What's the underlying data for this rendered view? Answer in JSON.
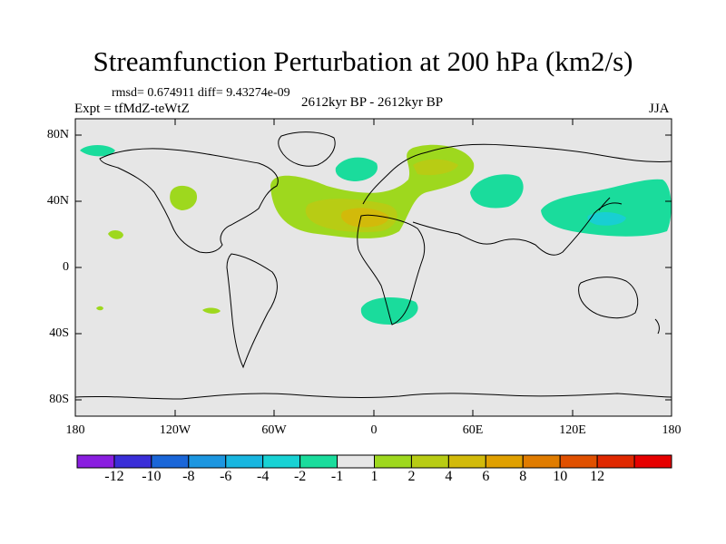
{
  "title": "Streamfunction Perturbation at 200 hPa (km2/s)",
  "stats_line": "rmsd= 0.674911 diff= 9.43274e-09",
  "expt_label": "Expt = tfMdZ-teWtZ",
  "period_label": "2612kyr BP - 2612kyr BP",
  "season_label": "JJA",
  "axes": {
    "y_ticks": [
      "80N",
      "40N",
      "0",
      "40S",
      "80S"
    ],
    "x_ticks": [
      "180",
      "120W",
      "60W",
      "0",
      "60E",
      "120E",
      "180"
    ]
  },
  "colorbar": {
    "colors": [
      "#8a1ee0",
      "#3a2ed8",
      "#1a66d8",
      "#1c96e0",
      "#18b6e0",
      "#18d2d4",
      "#1adc9c",
      "#e6e6e6",
      "#9ed81e",
      "#b8cc14",
      "#d2ba0a",
      "#e0a000",
      "#e07c00",
      "#e05000",
      "#e02800",
      "#e60000"
    ],
    "labels": [
      "-12",
      "-10",
      "-8",
      "-6",
      "-4",
      "-2",
      "-1",
      "1",
      "2",
      "4",
      "6",
      "8",
      "10",
      "12"
    ]
  },
  "palette": {
    "background": "#e6e6e6",
    "neg_light": "#1adc9c",
    "neg_mid": "#18cfd2",
    "pos_light": "#9ed81e",
    "pos_mid": "#b8cc14",
    "pos_high": "#d2ba0a"
  }
}
